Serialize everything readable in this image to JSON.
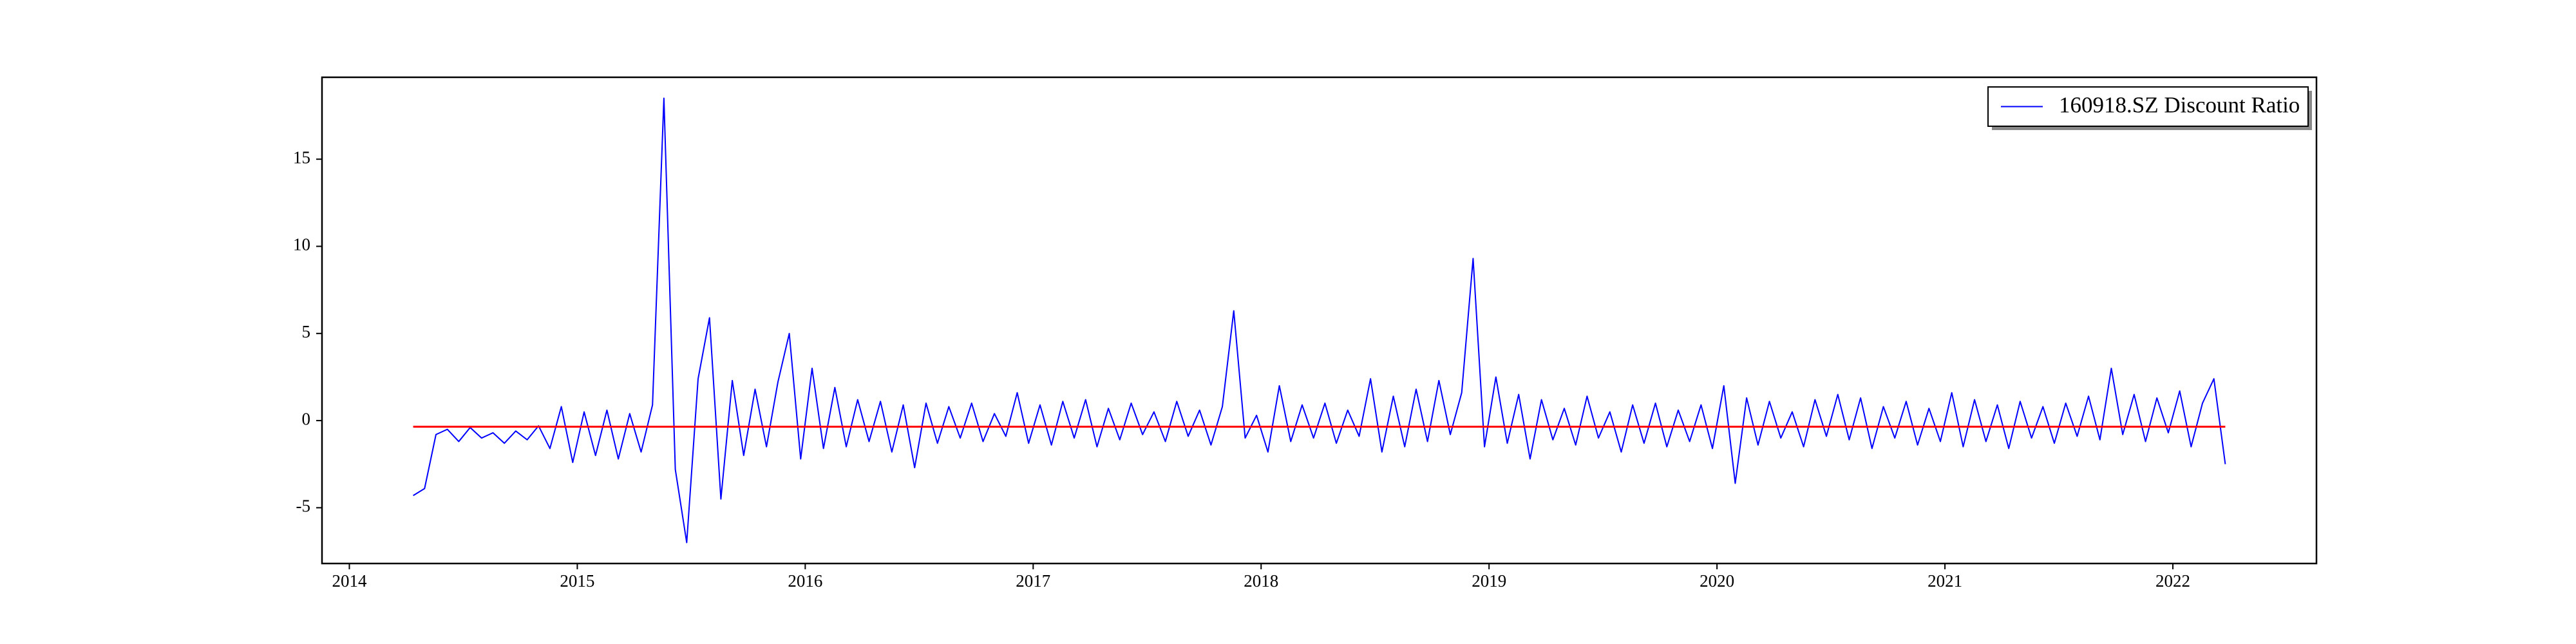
{
  "chart_data": {
    "type": "line",
    "x": [
      2014.28,
      2014.33,
      2014.38,
      2014.43,
      2014.48,
      2014.53,
      2014.58,
      2014.63,
      2014.68,
      2014.73,
      2014.78,
      2014.83,
      2014.88,
      2014.93,
      2014.98,
      2015.03,
      2015.08,
      2015.13,
      2015.18,
      2015.23,
      2015.28,
      2015.33,
      2015.38,
      2015.43,
      2015.48,
      2015.53,
      2015.58,
      2015.63,
      2015.68,
      2015.73,
      2015.78,
      2015.83,
      2015.88,
      2015.93,
      2015.98,
      2016.03,
      2016.08,
      2016.13,
      2016.18,
      2016.23,
      2016.28,
      2016.33,
      2016.38,
      2016.43,
      2016.48,
      2016.53,
      2016.58,
      2016.63,
      2016.68,
      2016.73,
      2016.78,
      2016.83,
      2016.88,
      2016.93,
      2016.98,
      2017.03,
      2017.08,
      2017.13,
      2017.18,
      2017.23,
      2017.28,
      2017.33,
      2017.38,
      2017.43,
      2017.48,
      2017.53,
      2017.58,
      2017.63,
      2017.68,
      2017.73,
      2017.78,
      2017.83,
      2017.88,
      2017.93,
      2017.98,
      2018.03,
      2018.08,
      2018.13,
      2018.18,
      2018.23,
      2018.28,
      2018.33,
      2018.38,
      2018.43,
      2018.48,
      2018.53,
      2018.58,
      2018.63,
      2018.68,
      2018.73,
      2018.78,
      2018.83,
      2018.88,
      2018.93,
      2018.98,
      2019.03,
      2019.08,
      2019.13,
      2019.18,
      2019.23,
      2019.28,
      2019.33,
      2019.38,
      2019.43,
      2019.48,
      2019.53,
      2019.58,
      2019.63,
      2019.68,
      2019.73,
      2019.78,
      2019.83,
      2019.88,
      2019.93,
      2019.98,
      2020.03,
      2020.08,
      2020.13,
      2020.18,
      2020.23,
      2020.28,
      2020.33,
      2020.38,
      2020.43,
      2020.48,
      2020.53,
      2020.58,
      2020.63,
      2020.68,
      2020.73,
      2020.78,
      2020.83,
      2020.88,
      2020.93,
      2020.98,
      2021.03,
      2021.08,
      2021.13,
      2021.18,
      2021.23,
      2021.28,
      2021.33,
      2021.38,
      2021.43,
      2021.48,
      2021.53,
      2021.58,
      2021.63,
      2021.68,
      2021.73,
      2021.78,
      2021.83,
      2021.88,
      2021.93,
      2021.98,
      2022.03,
      2022.08,
      2022.13,
      2022.18,
      2022.23
    ],
    "series": [
      {
        "name": "160918.SZ Discount Ratio",
        "color": "#0000ff",
        "values": [
          -4.3,
          -3.9,
          -0.8,
          -0.5,
          -1.2,
          -0.4,
          -1.0,
          -0.7,
          -1.3,
          -0.6,
          -1.1,
          -0.3,
          -1.6,
          0.8,
          -2.4,
          0.5,
          -2.0,
          0.6,
          -2.2,
          0.4,
          -1.8,
          0.9,
          18.5,
          -2.8,
          -7.0,
          2.4,
          5.9,
          -4.5,
          2.3,
          -2.0,
          1.8,
          -1.5,
          2.2,
          5.0,
          -2.2,
          3.0,
          -1.6,
          1.9,
          -1.5,
          1.2,
          -1.2,
          1.1,
          -1.8,
          0.9,
          -2.7,
          1.0,
          -1.3,
          0.8,
          -1.0,
          1.0,
          -1.2,
          0.4,
          -0.9,
          1.6,
          -1.3,
          0.9,
          -1.4,
          1.1,
          -1.0,
          1.2,
          -1.5,
          0.7,
          -1.1,
          1.0,
          -0.8,
          0.5,
          -1.2,
          1.1,
          -0.9,
          0.6,
          -1.4,
          0.8,
          6.3,
          -1.0,
          0.3,
          -1.8,
          2.0,
          -1.2,
          0.9,
          -1.0,
          1.0,
          -1.3,
          0.6,
          -0.9,
          2.4,
          -1.8,
          1.4,
          -1.5,
          1.8,
          -1.2,
          2.3,
          -0.8,
          1.6,
          9.3,
          -1.5,
          2.5,
          -1.3,
          1.5,
          -2.2,
          1.2,
          -1.1,
          0.7,
          -1.4,
          1.4,
          -1.0,
          0.5,
          -1.8,
          0.9,
          -1.3,
          1.0,
          -1.5,
          0.6,
          -1.2,
          0.9,
          -1.6,
          2.0,
          -3.6,
          1.3,
          -1.4,
          1.1,
          -1.0,
          0.5,
          -1.5,
          1.2,
          -0.9,
          1.5,
          -1.1,
          1.3,
          -1.6,
          0.8,
          -1.0,
          1.1,
          -1.4,
          0.7,
          -1.2,
          1.6,
          -1.5,
          1.2,
          -1.2,
          0.9,
          -1.6,
          1.1,
          -1.0,
          0.8,
          -1.3,
          1.0,
          -0.9,
          1.4,
          -1.1,
          3.0,
          -0.8,
          1.5,
          -1.2,
          1.3,
          -0.7,
          1.7,
          -1.5,
          1.0,
          2.4,
          -2.5
        ]
      }
    ],
    "mean_line": {
      "value": -0.35,
      "color": "#ff0000",
      "x": [
        2014.28,
        2022.23
      ]
    },
    "xlim": [
      2013.88,
      2022.63
    ],
    "xticks": [
      2014,
      2015,
      2016,
      2017,
      2018,
      2019,
      2020,
      2021,
      2022
    ],
    "ylim": [
      -8.2,
      19.7
    ],
    "yticks": [
      -5,
      0,
      5,
      10,
      15
    ],
    "grid": false,
    "legend": "upper right"
  }
}
